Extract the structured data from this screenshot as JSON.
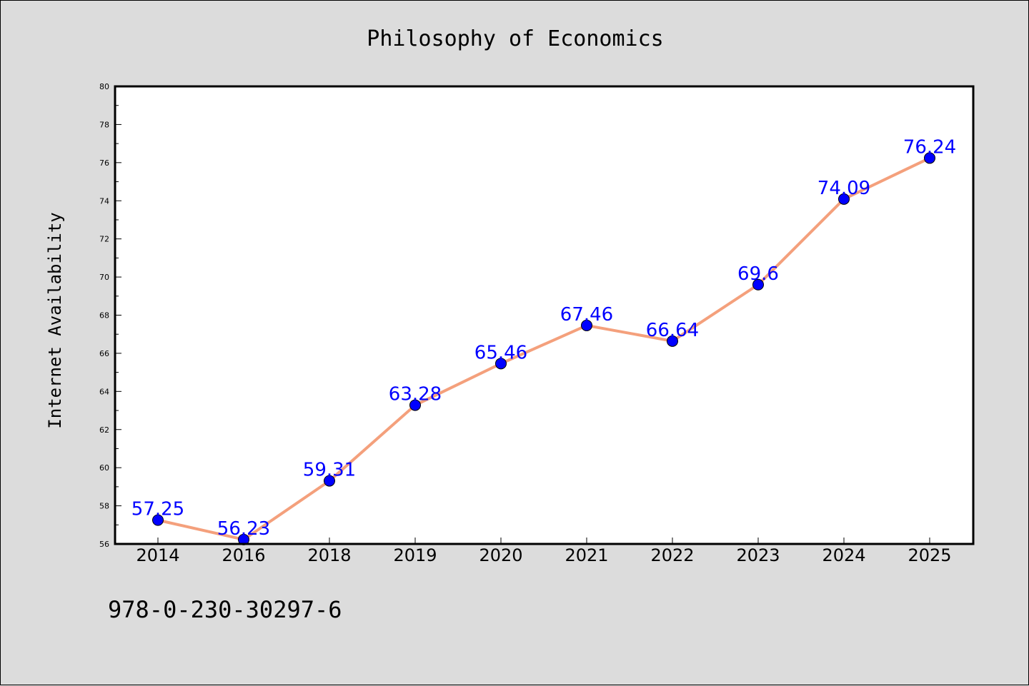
{
  "chart_data": {
    "type": "line",
    "title": "Philosophy of Economics",
    "xlabel": "",
    "ylabel": "Internet Availability",
    "categories": [
      "2014",
      "2016",
      "2018",
      "2019",
      "2020",
      "2021",
      "2022",
      "2023",
      "2024",
      "2025"
    ],
    "values": [
      57.25,
      56.23,
      59.31,
      63.28,
      65.46,
      67.46,
      66.64,
      69.6,
      74.09,
      76.24
    ],
    "data_labels": [
      "57.25",
      "56.23",
      "59.31",
      "63.28",
      "65.46",
      "67.46",
      "66.64",
      "69.6",
      "74.09",
      "76.24"
    ],
    "ylim": [
      56,
      80
    ],
    "yticks": [
      "56",
      "58",
      "60",
      "62",
      "64",
      "66",
      "68",
      "70",
      "72",
      "74",
      "76",
      "78",
      "80"
    ],
    "grid": false,
    "line_color": "#f4a07c",
    "marker_color": "#0000ff",
    "label_color": "#0000ff"
  },
  "footer": {
    "isbn": "978-0-230-30297-6"
  }
}
